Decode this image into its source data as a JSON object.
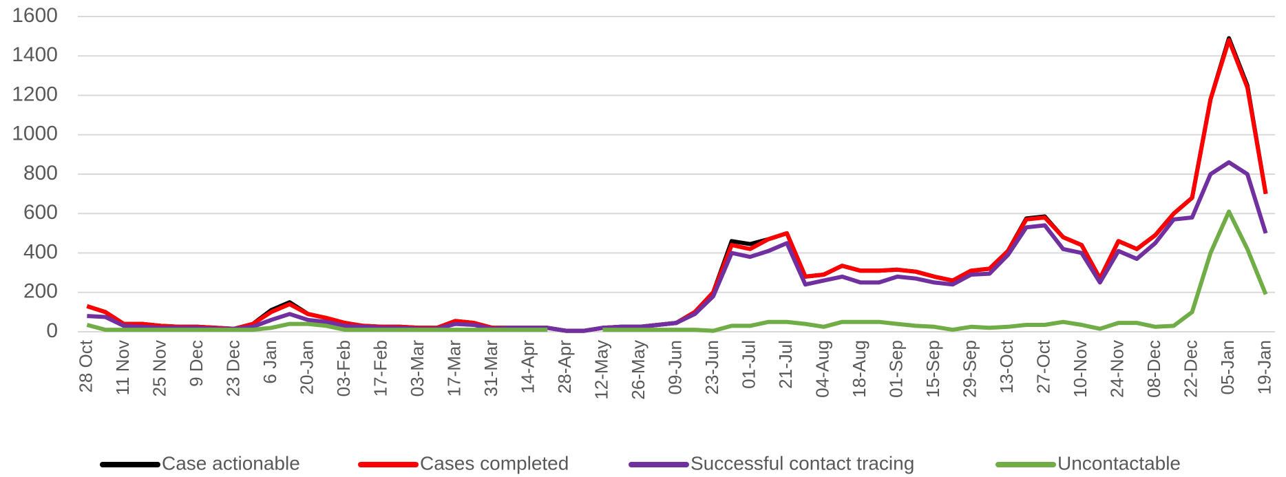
{
  "chart_data": {
    "type": "line",
    "categories": [
      "28 Oct",
      null,
      "11 Nov",
      null,
      "25 Nov",
      null,
      "9 Dec",
      null,
      "23 Dec",
      null,
      "6 Jan",
      null,
      "20-Jan",
      null,
      "03-Feb",
      null,
      "17-Feb",
      null,
      "03-Mar",
      null,
      "17-Mar",
      null,
      "31-Mar",
      null,
      "14-Apr",
      null,
      "28-Apr",
      null,
      "12-May",
      null,
      "26-May",
      null,
      "09-Jun",
      null,
      "23-Jun",
      null,
      "01-Jul",
      null,
      "21-Jul",
      null,
      "04-Aug",
      null,
      "18-Aug",
      null,
      "01-Sep",
      null,
      "15-Sep",
      null,
      "29-Sep",
      null,
      "13-Oct",
      null,
      "27-Oct",
      null,
      "10-Nov",
      null,
      "24-Nov",
      null,
      "08-Dec",
      null,
      "22-Dec",
      null,
      "05-Jan",
      null,
      "19-Jan"
    ],
    "series": [
      {
        "name": "Case actionable",
        "color": "#000000",
        "values": [
          130,
          100,
          40,
          40,
          30,
          25,
          25,
          20,
          15,
          40,
          110,
          150,
          90,
          70,
          45,
          30,
          25,
          25,
          20,
          20,
          55,
          45,
          20,
          20,
          20,
          20,
          5,
          5,
          20,
          25,
          25,
          35,
          45,
          100,
          200,
          460,
          445,
          470,
          500,
          280,
          290,
          335,
          310,
          310,
          315,
          305,
          280,
          260,
          310,
          320,
          410,
          575,
          585,
          480,
          440,
          270,
          460,
          420,
          490,
          600,
          680,
          1180,
          1490,
          1250,
          700
        ]
      },
      {
        "name": "Cases completed",
        "color": "#ff0000",
        "values": [
          130,
          100,
          40,
          40,
          30,
          25,
          25,
          20,
          15,
          40,
          100,
          140,
          90,
          70,
          45,
          30,
          25,
          25,
          20,
          20,
          55,
          45,
          20,
          20,
          20,
          20,
          5,
          5,
          20,
          25,
          25,
          35,
          45,
          100,
          200,
          440,
          420,
          470,
          500,
          280,
          290,
          335,
          310,
          310,
          315,
          305,
          280,
          260,
          310,
          320,
          410,
          570,
          580,
          480,
          440,
          270,
          460,
          420,
          490,
          600,
          680,
          1180,
          1480,
          1240,
          700
        ]
      },
      {
        "name": "Successful contact tracing",
        "color": "#7030a0",
        "values": [
          80,
          75,
          30,
          25,
          20,
          20,
          20,
          15,
          15,
          25,
          60,
          90,
          60,
          50,
          30,
          25,
          20,
          20,
          15,
          15,
          40,
          35,
          15,
          20,
          20,
          20,
          5,
          5,
          20,
          25,
          25,
          35,
          45,
          90,
          180,
          400,
          380,
          410,
          450,
          240,
          260,
          280,
          250,
          250,
          280,
          270,
          250,
          240,
          290,
          295,
          390,
          530,
          540,
          420,
          400,
          250,
          410,
          370,
          450,
          570,
          580,
          800,
          860,
          800,
          500
        ]
      },
      {
        "name": "Uncontactable",
        "color": "#70ad47",
        "values": [
          35,
          10,
          10,
          10,
          10,
          10,
          10,
          10,
          10,
          10,
          20,
          40,
          40,
          30,
          10,
          10,
          10,
          10,
          10,
          10,
          10,
          10,
          10,
          10,
          10,
          10,
          null,
          null,
          10,
          10,
          10,
          10,
          10,
          10,
          5,
          30,
          30,
          50,
          50,
          40,
          25,
          50,
          50,
          50,
          40,
          30,
          25,
          10,
          25,
          20,
          25,
          35,
          35,
          50,
          35,
          15,
          45,
          45,
          25,
          30,
          100,
          400,
          610,
          420,
          190
        ]
      }
    ],
    "ylim": [
      0,
      1600
    ],
    "yticks": [
      0,
      200,
      400,
      600,
      800,
      1000,
      1200,
      1400,
      1600
    ],
    "grid": true,
    "legend": "bottom"
  }
}
